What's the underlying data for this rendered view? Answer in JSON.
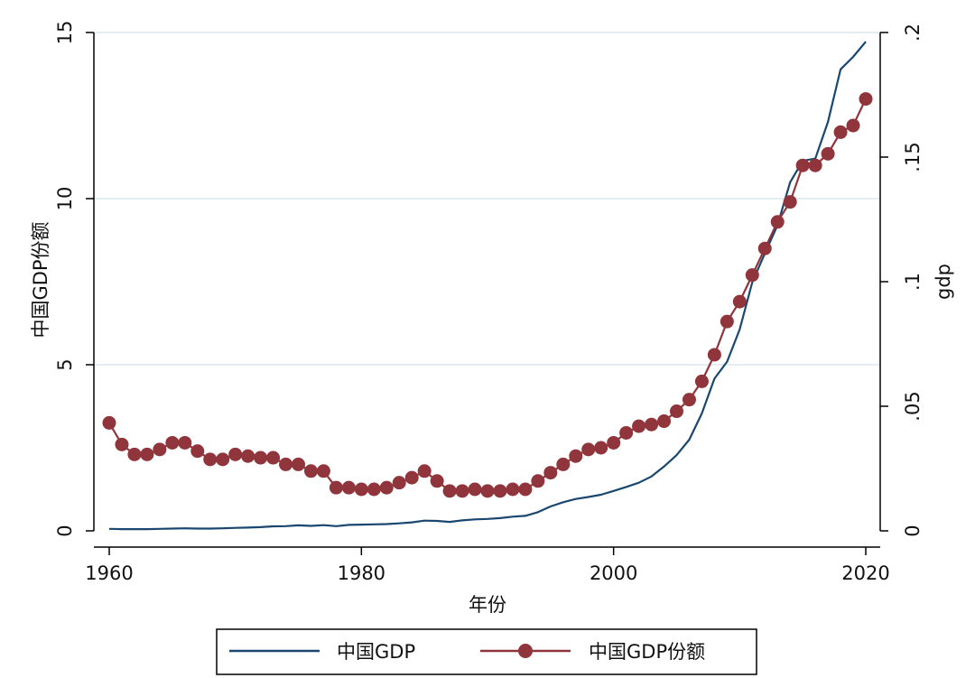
{
  "chart_data": {
    "type": "line",
    "xlabel": "年份",
    "ylabel_left": "中国GDP份额",
    "ylabel_right": "gdp",
    "xlim": [
      1960,
      2020
    ],
    "ylim_left": [
      0,
      15
    ],
    "ylim_right": [
      0,
      0.2
    ],
    "x_ticks": [
      1960,
      1980,
      2000,
      2020
    ],
    "x_tick_labels": [
      "1960",
      "1980",
      "2000",
      "2020"
    ],
    "y_left_ticks": [
      0,
      5,
      10,
      15
    ],
    "y_left_tick_labels": [
      "0",
      "5",
      "10",
      "15"
    ],
    "y_right_ticks": [
      0,
      0.05,
      0.1,
      0.15,
      0.2
    ],
    "y_right_tick_labels": [
      "0",
      ".05",
      ".1",
      ".15",
      ".2"
    ],
    "grid": true,
    "legend_position": "bottom",
    "x": [
      1960,
      1961,
      1962,
      1963,
      1964,
      1965,
      1966,
      1967,
      1968,
      1969,
      1970,
      1971,
      1972,
      1973,
      1974,
      1975,
      1976,
      1977,
      1978,
      1979,
      1980,
      1981,
      1982,
      1983,
      1984,
      1985,
      1986,
      1987,
      1988,
      1989,
      1990,
      1991,
      1992,
      1993,
      1994,
      1995,
      1996,
      1997,
      1998,
      1999,
      2000,
      2001,
      2002,
      2003,
      2004,
      2005,
      2006,
      2007,
      2008,
      2009,
      2010,
      2011,
      2012,
      2013,
      2014,
      2015,
      2016,
      2017,
      2018,
      2019,
      2020
    ],
    "series": [
      {
        "name": "中国GDP",
        "axis": "right",
        "color": "#1a476f",
        "marker": "none",
        "values": [
          0.0008,
          0.0007,
          0.0007,
          0.0007,
          0.0008,
          0.0009,
          0.001,
          0.0009,
          0.0009,
          0.001,
          0.0012,
          0.0013,
          0.0015,
          0.0018,
          0.0019,
          0.0022,
          0.002,
          0.0023,
          0.0019,
          0.0024,
          0.0025,
          0.0026,
          0.0027,
          0.003,
          0.0034,
          0.0041,
          0.004,
          0.0036,
          0.0042,
          0.0046,
          0.0048,
          0.0051,
          0.0057,
          0.006,
          0.0075,
          0.0098,
          0.0115,
          0.0128,
          0.0136,
          0.0145,
          0.016,
          0.0176,
          0.0193,
          0.0218,
          0.0258,
          0.0304,
          0.0366,
          0.0471,
          0.0611,
          0.0679,
          0.0808,
          0.0998,
          0.1114,
          0.1226,
          0.1399,
          0.1485,
          0.1494,
          0.1641,
          0.1852,
          0.1902,
          0.1963
        ]
      },
      {
        "name": "中国GDP份额",
        "axis": "left",
        "color": "#90353b",
        "marker": "circle",
        "values": [
          3.25,
          2.6,
          2.3,
          2.3,
          2.45,
          2.65,
          2.65,
          2.4,
          2.15,
          2.15,
          2.3,
          2.25,
          2.2,
          2.2,
          2.0,
          2.0,
          1.8,
          1.8,
          1.3,
          1.3,
          1.25,
          1.25,
          1.3,
          1.45,
          1.6,
          1.8,
          1.5,
          1.2,
          1.2,
          1.25,
          1.2,
          1.2,
          1.25,
          1.25,
          1.5,
          1.75,
          2.0,
          2.25,
          2.45,
          2.5,
          2.65,
          2.95,
          3.15,
          3.2,
          3.3,
          3.6,
          3.95,
          4.5,
          5.3,
          6.3,
          6.9,
          7.7,
          8.5,
          9.3,
          9.9,
          11.0,
          11.0,
          11.35,
          12.0,
          12.2,
          13.0
        ]
      }
    ]
  }
}
